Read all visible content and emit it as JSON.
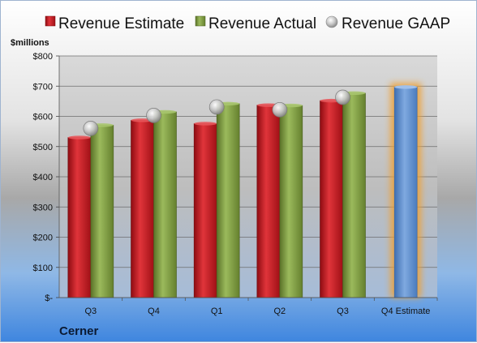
{
  "chart_data": {
    "type": "bar",
    "unit_label": "$millions",
    "company": "Cerner",
    "categories": [
      "Q3",
      "Q4",
      "Q1",
      "Q2",
      "Q3",
      "Q4 Estimate"
    ],
    "series": [
      {
        "name": "Revenue Estimate",
        "type": "bar",
        "values": [
          530,
          587,
          576,
          637,
          652,
          null
        ],
        "color": "#c0121a"
      },
      {
        "name": "Revenue Actual",
        "type": "bar",
        "values": [
          571,
          615,
          642,
          636,
          677,
          null
        ],
        "color": "#77933c"
      },
      {
        "name": "Revenue GAAP",
        "type": "scatter",
        "values": [
          560,
          603,
          631,
          622,
          663,
          null
        ],
        "color": "#b8b8b8"
      }
    ],
    "estimate": {
      "category": "Q4 Estimate",
      "value": 697,
      "color": "#5b8fd1",
      "glow_color": "#f0a030"
    },
    "y_ticks": [
      0,
      100,
      200,
      300,
      400,
      500,
      600,
      700,
      800
    ],
    "y_tick_labels": [
      "$-",
      "$100",
      "$200",
      "$300",
      "$400",
      "$500",
      "$600",
      "$700",
      "$800"
    ],
    "ylim": [
      0,
      800
    ],
    "grid": true,
    "legend_position": "top"
  }
}
